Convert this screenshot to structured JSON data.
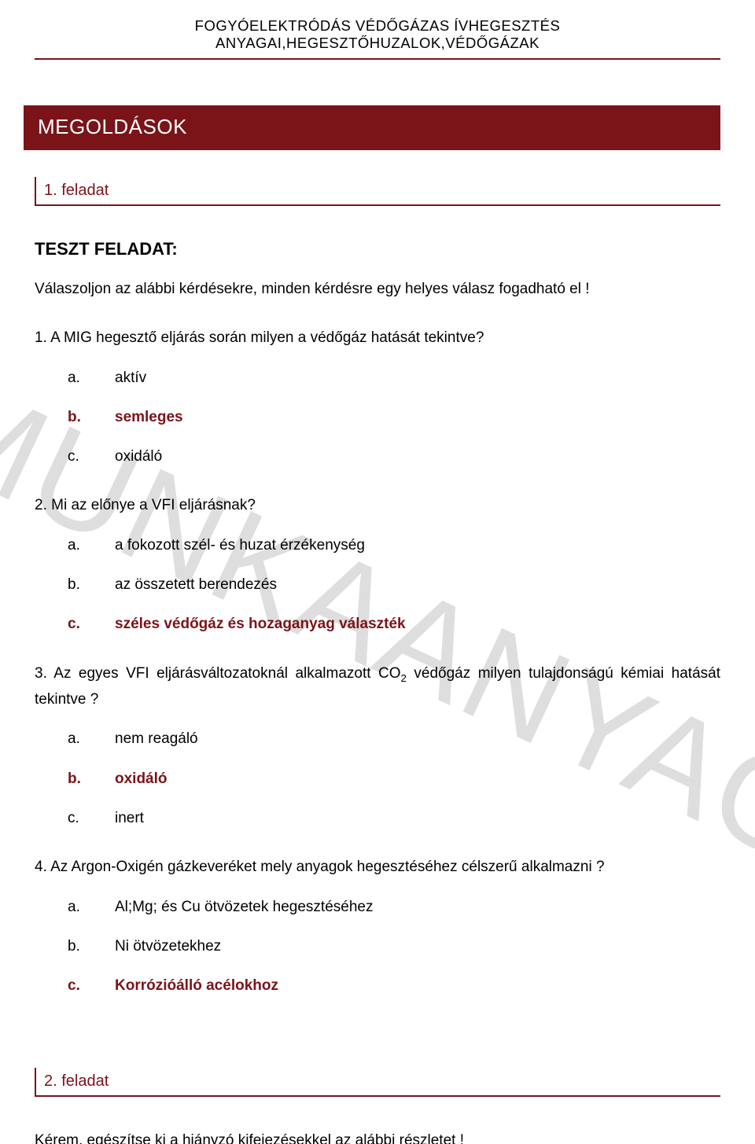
{
  "colors": {
    "accent": "#7a1419",
    "text": "#000000",
    "watermark": "#dedede",
    "background": "#ffffff"
  },
  "typography": {
    "font_family": "Trebuchet MS",
    "header_fontsize": 18.5,
    "banner_fontsize": 26,
    "task_heading_fontsize": 20,
    "subhead_fontsize": 22,
    "body_fontsize": 19
  },
  "watermark": "MUNKAANYAG",
  "header": "FOGYÓELEKTRÓDÁS VÉDŐGÁZAS ÍVHEGESZTÉS ANYAGAI,HEGESZTŐHUZALOK,VÉDŐGÁZAK",
  "section_title": "MEGOLDÁSOK",
  "task1": {
    "heading": "1. feladat",
    "subhead": "TESZT FELADAT:",
    "intro": "Válaszoljon az alábbi kérdésekre, minden kérdésre egy helyes válasz fogadható el !",
    "q1": {
      "text": "1. A MIG hegesztő eljárás során milyen a védőgáz hatását tekintve?",
      "a": {
        "letter": "a.",
        "text": "aktív"
      },
      "b": {
        "letter": "b.",
        "text": "semleges"
      },
      "c": {
        "letter": "c.",
        "text": "oxidáló"
      },
      "correct": "b"
    },
    "q2": {
      "text": "2. Mi az előnye a VFI eljárásnak?",
      "a": {
        "letter": "a.",
        "text": "a fokozott szél- és huzat érzékenység"
      },
      "b": {
        "letter": "b.",
        "text": "az összetett berendezés"
      },
      "c": {
        "letter": "c.",
        "text": "széles védőgáz és hozaganyag választék"
      },
      "correct": "c"
    },
    "q3": {
      "text_pre": "3. Az egyes VFI eljárásváltozatoknál alkalmazott CO",
      "text_sub": "2",
      "text_post": " védőgáz milyen tulajdonságú kémiai hatását tekintve ?",
      "a": {
        "letter": "a.",
        "text": "nem reagáló"
      },
      "b": {
        "letter": "b.",
        "text": "oxidáló"
      },
      "c": {
        "letter": "c.",
        "text": "inert"
      },
      "correct": "b"
    },
    "q4": {
      "text": "4. Az Argon-Oxigén gázkeveréket mely anyagok hegesztéséhez célszerű alkalmazni ?",
      "a": {
        "letter": "a.",
        "text": "Al;Mg; és Cu ötvözetek hegesztéséhez"
      },
      "b": {
        "letter": "b.",
        "text": "Ni ötvözetekhez"
      },
      "c": {
        "letter": "c.",
        "text": "Korrózióálló acélokhoz"
      },
      "correct": "c"
    }
  },
  "task2": {
    "heading": "2. feladat",
    "text": "Kérem, egészítse ki a hiányzó kifejezésekkel az alábbi részletet !"
  }
}
